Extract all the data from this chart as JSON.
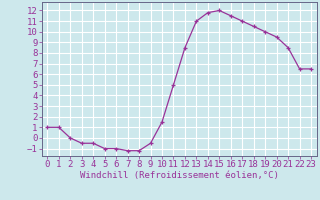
{
  "x": [
    0,
    1,
    2,
    3,
    4,
    5,
    6,
    7,
    8,
    9,
    10,
    11,
    12,
    13,
    14,
    15,
    16,
    17,
    18,
    19,
    20,
    21,
    22,
    23
  ],
  "y": [
    1.0,
    1.0,
    0.0,
    -0.5,
    -0.5,
    -1.0,
    -1.0,
    -1.2,
    -1.2,
    -0.5,
    1.5,
    5.0,
    8.5,
    11.0,
    11.8,
    12.0,
    11.5,
    11.0,
    10.5,
    10.0,
    9.5,
    8.5,
    6.5,
    6.5
  ],
  "line_color": "#993399",
  "marker": "+",
  "marker_color": "#993399",
  "background_color": "#cde8ec",
  "grid_color": "#aacccc",
  "xlabel": "Windchill (Refroidissement éolien,°C)",
  "xlabel_color": "#993399",
  "tick_color": "#993399",
  "xlim": [
    -0.5,
    23.5
  ],
  "ylim": [
    -1.7,
    12.8
  ],
  "yticks": [
    -1,
    0,
    1,
    2,
    3,
    4,
    5,
    6,
    7,
    8,
    9,
    10,
    11,
    12
  ],
  "xticks": [
    0,
    1,
    2,
    3,
    4,
    5,
    6,
    7,
    8,
    9,
    10,
    11,
    12,
    13,
    14,
    15,
    16,
    17,
    18,
    19,
    20,
    21,
    22,
    23
  ],
  "spine_color": "#666688",
  "font_size": 6.5
}
